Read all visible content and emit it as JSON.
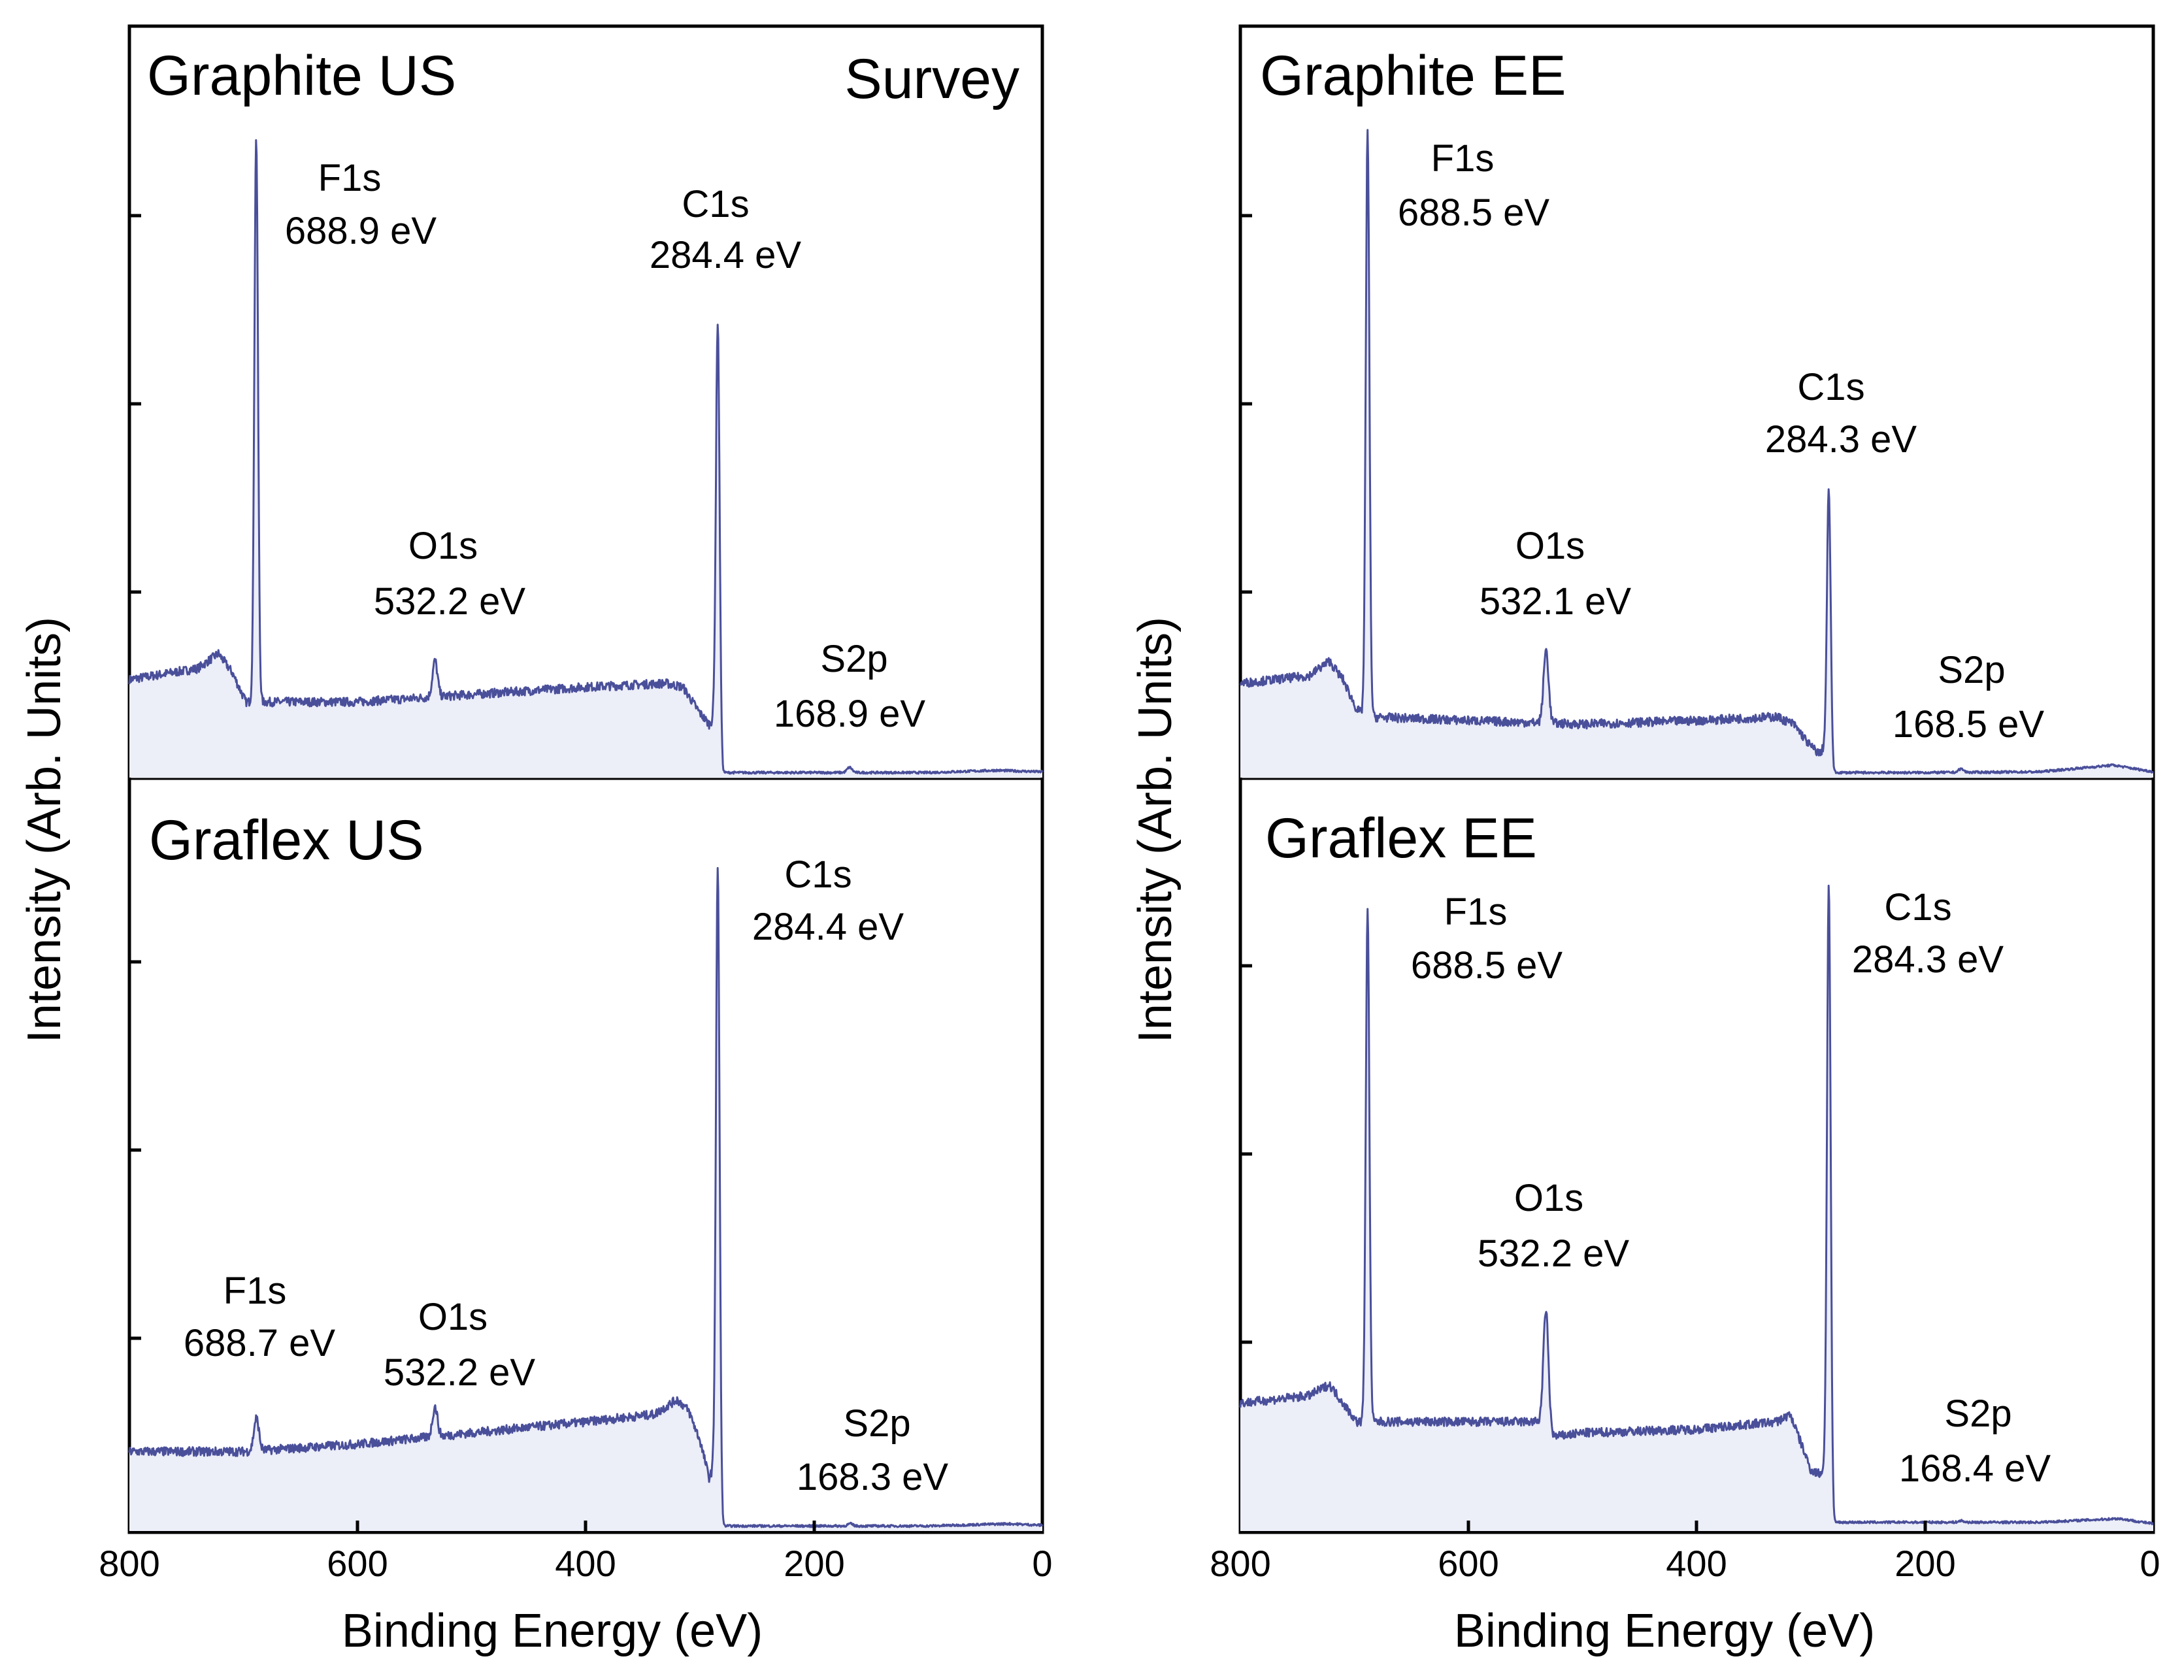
{
  "figure": {
    "xlabel": "Binding Energy (eV)",
    "ylabel": "Intensity (Arb. Units)",
    "xticks": [
      "800",
      "600",
      "400",
      "200",
      "0"
    ],
    "survey_label": "Survey"
  },
  "colors": {
    "line": "#4a4f9a",
    "fill": "#eceef8",
    "axis": "#000000"
  },
  "chart_data": [
    {
      "type": "line",
      "title": "Graphite US",
      "xlabel": "Binding Energy (eV)",
      "ylabel": "Intensity (Arb. Units)",
      "xlim": [
        800,
        0
      ],
      "ylim": [
        0,
        1
      ],
      "baseline": [
        [
          800,
          0.13
        ],
        [
          740,
          0.145
        ],
        [
          722,
          0.165
        ],
        [
          710,
          0.14
        ],
        [
          698,
          0.1
        ],
        [
          690,
          0.1
        ],
        [
          600,
          0.1
        ],
        [
          500,
          0.11
        ],
        [
          400,
          0.12
        ],
        [
          330,
          0.125
        ],
        [
          315,
          0.12
        ],
        [
          300,
          0.085
        ],
        [
          292,
          0.07
        ],
        [
          285,
          0.08
        ],
        [
          280,
          0.005
        ],
        [
          200,
          0.005
        ],
        [
          100,
          0.005
        ],
        [
          40,
          0.008
        ],
        [
          0,
          0.006
        ]
      ],
      "peaks": [
        {
          "name": "F1s",
          "energy_label": "688.9 eV",
          "x": 688.9,
          "y": 0.86
        },
        {
          "name": "O1s",
          "energy_label": "532.2 eV",
          "x": 532.2,
          "y": 0.155
        },
        {
          "name": "C1s",
          "energy_label": "284.4 eV",
          "x": 284.4,
          "y": 0.61
        },
        {
          "name": "S2p",
          "energy_label": "168.9 eV",
          "x": 168.9,
          "y": 0.012
        }
      ]
    },
    {
      "type": "line",
      "title": "Graflex US",
      "xlabel": "Binding Energy (eV)",
      "ylabel": "Intensity (Arb. Units)",
      "xlim": [
        800,
        0
      ],
      "ylim": [
        0,
        1
      ],
      "baseline": [
        [
          800,
          0.105
        ],
        [
          700,
          0.105
        ],
        [
          600,
          0.115
        ],
        [
          500,
          0.13
        ],
        [
          400,
          0.145
        ],
        [
          340,
          0.155
        ],
        [
          320,
          0.175
        ],
        [
          310,
          0.16
        ],
        [
          300,
          0.12
        ],
        [
          292,
          0.07
        ],
        [
          285,
          0.09
        ],
        [
          280,
          0.005
        ],
        [
          200,
          0.005
        ],
        [
          100,
          0.005
        ],
        [
          30,
          0.008
        ],
        [
          0,
          0.006
        ]
      ],
      "peaks": [
        {
          "name": "F1s",
          "energy_label": "688.7 eV",
          "x": 688.7,
          "y": 0.15
        },
        {
          "name": "O1s",
          "energy_label": "532.2 eV",
          "x": 532.2,
          "y": 0.165
        },
        {
          "name": "C1s",
          "energy_label": "284.4 eV",
          "x": 284.4,
          "y": 0.885
        },
        {
          "name": "S2p",
          "energy_label": "168.3 eV",
          "x": 168.3,
          "y": 0.008
        }
      ]
    },
    {
      "type": "line",
      "title": "Graphite EE",
      "xlabel": "Binding Energy (eV)",
      "ylabel": "Intensity (Arb. Units)",
      "xlim": [
        800,
        0
      ],
      "ylim": [
        0,
        1
      ],
      "baseline": [
        [
          800,
          0.125
        ],
        [
          740,
          0.135
        ],
        [
          722,
          0.155
        ],
        [
          710,
          0.13
        ],
        [
          698,
          0.09
        ],
        [
          690,
          0.08
        ],
        [
          600,
          0.075
        ],
        [
          500,
          0.07
        ],
        [
          400,
          0.075
        ],
        [
          330,
          0.08
        ],
        [
          315,
          0.07
        ],
        [
          300,
          0.04
        ],
        [
          292,
          0.03
        ],
        [
          285,
          0.05
        ],
        [
          280,
          0.005
        ],
        [
          200,
          0.005
        ],
        [
          100,
          0.006
        ],
        [
          35,
          0.015
        ],
        [
          0,
          0.006
        ]
      ],
      "peaks": [
        {
          "name": "F1s",
          "energy_label": "688.5 eV",
          "x": 688.5,
          "y": 0.865
        },
        {
          "name": "O1s",
          "energy_label": "532.1 eV",
          "x": 532.1,
          "y": 0.17
        },
        {
          "name": "C1s",
          "energy_label": "284.3 eV",
          "x": 284.3,
          "y": 0.385
        },
        {
          "name": "S2p",
          "energy_label": "168.5 eV",
          "x": 168.5,
          "y": 0.01
        }
      ]
    },
    {
      "type": "line",
      "title": "Graflex EE",
      "xlabel": "Binding Energy (eV)",
      "ylabel": "Intensity (Arb. Units)",
      "xlim": [
        800,
        0
      ],
      "ylim": [
        0,
        1
      ],
      "baseline": [
        [
          800,
          0.17
        ],
        [
          740,
          0.18
        ],
        [
          722,
          0.195
        ],
        [
          710,
          0.17
        ],
        [
          698,
          0.145
        ],
        [
          690,
          0.145
        ],
        [
          600,
          0.145
        ],
        [
          535,
          0.145
        ],
        [
          525,
          0.125
        ],
        [
          500,
          0.13
        ],
        [
          400,
          0.135
        ],
        [
          330,
          0.145
        ],
        [
          318,
          0.155
        ],
        [
          300,
          0.08
        ],
        [
          292,
          0.075
        ],
        [
          285,
          0.09
        ],
        [
          280,
          0.01
        ],
        [
          200,
          0.01
        ],
        [
          100,
          0.01
        ],
        [
          30,
          0.015
        ],
        [
          0,
          0.008
        ]
      ],
      "peaks": [
        {
          "name": "F1s",
          "energy_label": "688.5 eV",
          "x": 688.5,
          "y": 0.83
        },
        {
          "name": "O1s",
          "energy_label": "532.2 eV",
          "x": 532.2,
          "y": 0.295
        },
        {
          "name": "C1s",
          "energy_label": "284.3 eV",
          "x": 284.3,
          "y": 0.865
        },
        {
          "name": "S2p",
          "energy_label": "168.4 eV",
          "x": 168.4,
          "y": 0.012
        }
      ]
    }
  ]
}
